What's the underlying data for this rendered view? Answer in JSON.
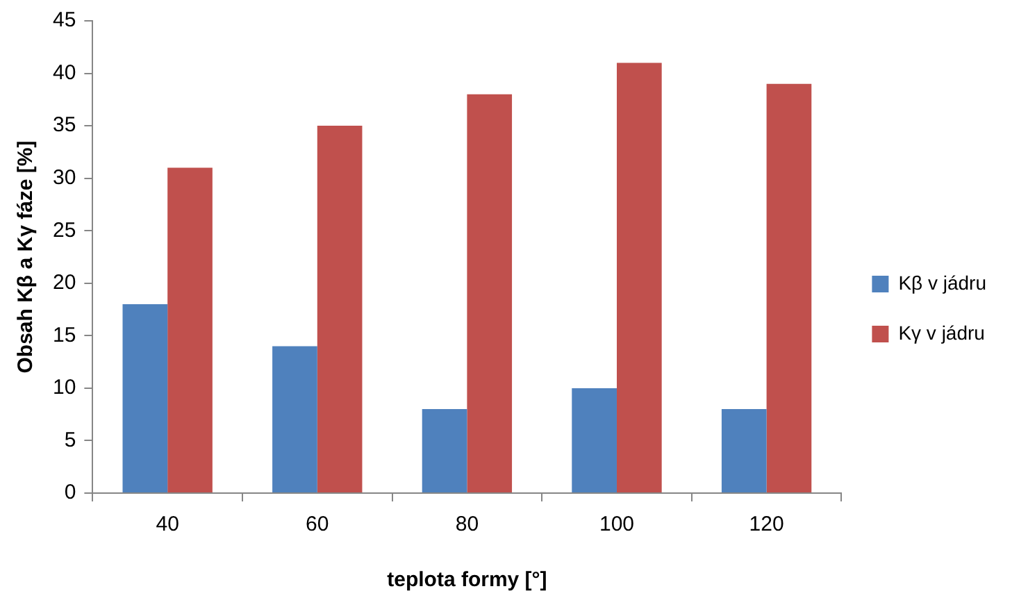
{
  "chart_data": {
    "type": "bar",
    "xlabel": "teplota formy [°]",
    "ylabel": "Obsah Kβ a Kγ fáze [%]",
    "categories": [
      "40",
      "60",
      "80",
      "100",
      "120"
    ],
    "series": [
      {
        "name": "Kβ v jádru",
        "color": "#4f81bd",
        "values": [
          18,
          14,
          8,
          10,
          8
        ]
      },
      {
        "name": "Kγ v jádru",
        "color": "#c0504d",
        "values": [
          31,
          35,
          38,
          41,
          39
        ]
      }
    ],
    "ylim": [
      0,
      45
    ],
    "yticks": [
      0,
      5,
      10,
      15,
      20,
      25,
      30,
      35,
      40,
      45
    ],
    "grid": false,
    "legend": "right"
  }
}
